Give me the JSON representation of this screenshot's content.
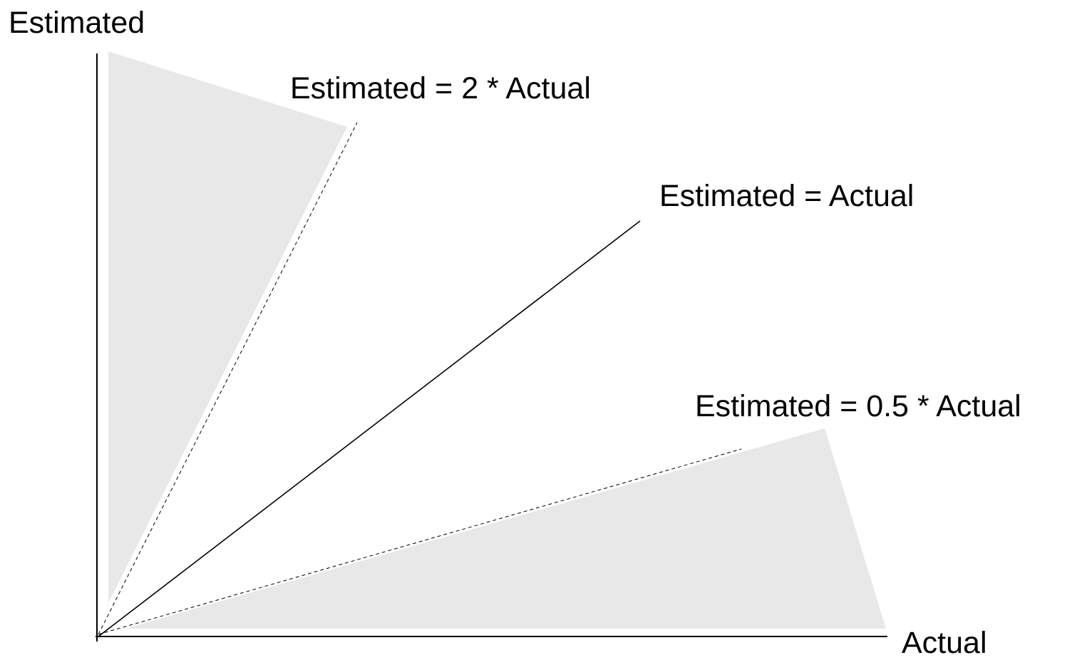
{
  "axes": {
    "y_label": "Estimated",
    "x_label": "Actual"
  },
  "lines": [
    {
      "label": "Estimated = 2 * Actual"
    },
    {
      "label": "Estimated = Actual"
    },
    {
      "label": "Estimated = 0.5 * Actual"
    }
  ]
}
